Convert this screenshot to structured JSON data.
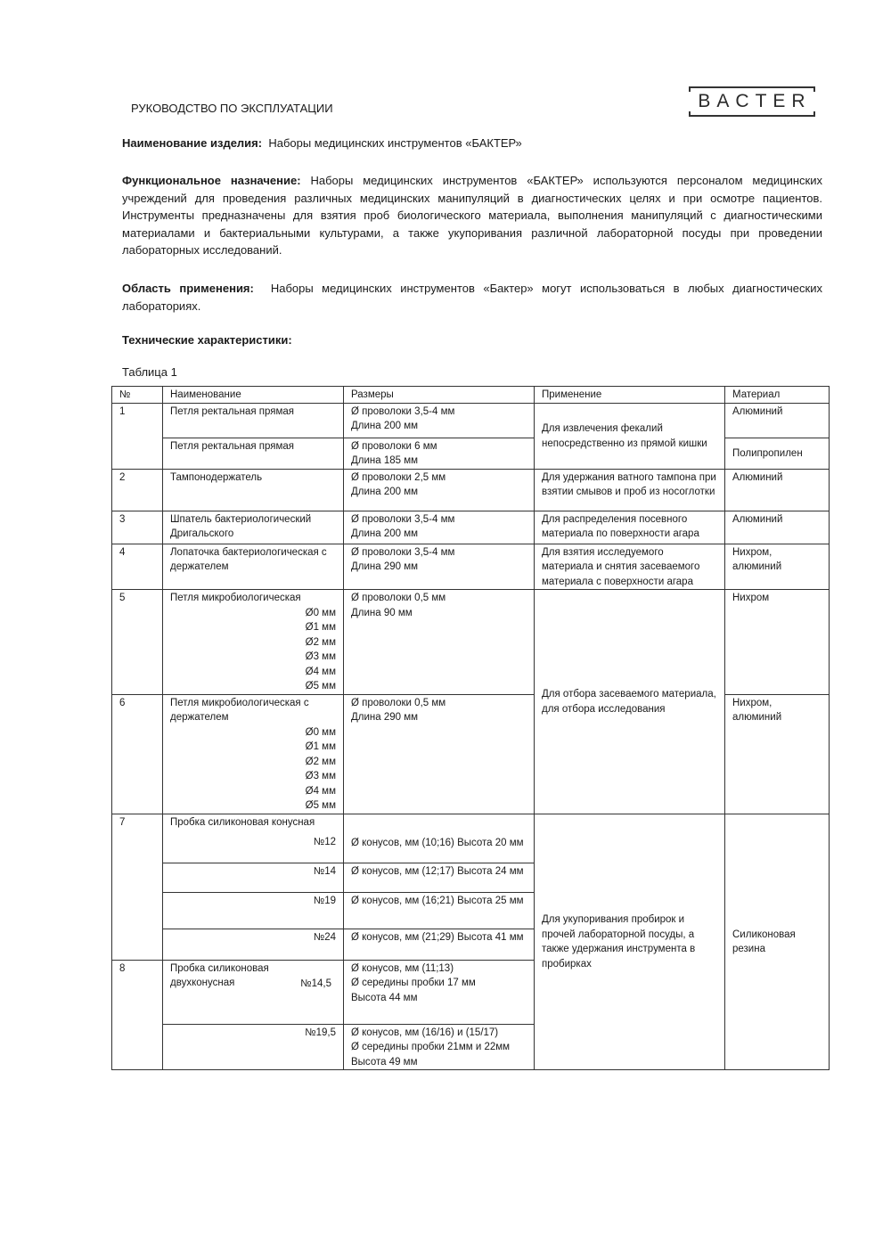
{
  "header": {
    "title": "РУКОВОДСТВО ПО ЭКСПЛУАТАЦИИ",
    "logo_text": "BACTER"
  },
  "product": {
    "label": "Наименование изделия:",
    "value": "Наборы медицинских инструментов «БАКТЕР»"
  },
  "purpose": {
    "label": "Функциональное назначение:",
    "value": "Наборы медицинских инструментов «БАКТЕР» используются  персоналом медицинских учреждений для проведения различных медицинских манипуляций в диагностических целях и при осмотре пациентов. Инструменты предназначены для взятия проб биологического материала, выполнения манипуляций с диагностическими материалами и бактериальными культурами, а также укупоривания различной лабораторной посуды при проведении лабораторных исследований."
  },
  "scope": {
    "label": "Область применения:",
    "value": "Наборы медицинских инструментов «Бактер» могут использоваться в любых диагностических лабораториях."
  },
  "specs_heading": "Технические характеристики:",
  "table": {
    "caption": "Таблица 1",
    "headers": [
      "№",
      "Наименование",
      "Размеры",
      "Применение",
      "Материал"
    ],
    "rows": [
      {
        "no": "1",
        "items": [
          {
            "name": "Петля ректальная прямая",
            "sizes": [
              "Ø проволоки 3,5-4 мм",
              "Длина 200 мм"
            ],
            "material": "Алюминий"
          },
          {
            "name": "Петля ректальная прямая",
            "sizes": [
              "Ø проволоки 6 мм",
              "Длина 185 мм"
            ],
            "material": "Полипропилен"
          }
        ],
        "application": "Для извлечения фекалий непосредственно из прямой кишки"
      },
      {
        "no": "2",
        "name": "Тампонодержатель",
        "sizes": [
          "Ø проволоки 2,5 мм",
          "Длина 200 мм"
        ],
        "application": "Для удержания ватного тампона при взятии смывов и проб из носоглотки",
        "material": "Алюминий"
      },
      {
        "no": "3",
        "name": "Шпатель бактериологический Дригальского",
        "sizes": [
          "Ø проволоки 3,5-4 мм",
          "Длина 200 мм"
        ],
        "application": "Для распределения посевного материала по поверхности агара",
        "material": "Алюминий"
      },
      {
        "no": "4",
        "name": "Лопаточка бактериологическая с держателем",
        "sizes": [
          "Ø проволоки 3,5-4 мм",
          "Длина 290 мм"
        ],
        "application": "Для взятия исследуемого материала и снятия засеваемого материала с поверхности агара",
        "material": "Нихром, алюминий"
      },
      {
        "no": "5",
        "name": "Петля микробиологическая",
        "variants": [
          "Ø0 мм",
          "Ø1 мм",
          "Ø2 мм",
          "Ø3 мм",
          "Ø4 мм",
          "Ø5 мм"
        ],
        "sizes": [
          "Ø проволоки 0,5 мм",
          "Длина 90 мм"
        ],
        "material": "Нихром"
      },
      {
        "no": "6",
        "name": "Петля микробиологическая с держателем",
        "variants": [
          "Ø0 мм",
          "Ø1 мм",
          "Ø2 мм",
          "Ø3 мм",
          "Ø4 мм",
          "Ø5 мм"
        ],
        "sizes": [
          "Ø проволоки 0,5 мм",
          "Длина 290 мм"
        ],
        "material": "Нихром, алюминий"
      },
      {
        "no": "7",
        "name": "Пробка силиконовая конусная",
        "items": [
          {
            "variant": "№12",
            "size": "Ø конусов, мм  (10;16) Высота 20 мм"
          },
          {
            "variant": "№14",
            "size": "Ø конусов, мм  (12;17) Высота 24 мм"
          },
          {
            "variant": "№19",
            "size": "Ø конусов, мм  (16;21) Высота 25 мм"
          },
          {
            "variant": "№24",
            "size": "Ø конусов, мм  (21;29) Высота 41 мм"
          }
        ]
      },
      {
        "no": "8",
        "name": "Пробка силиконовая двухконусная",
        "items": [
          {
            "variant": "№14,5",
            "sizes": [
              "Ø конусов, мм (11;13)",
              "Ø середины пробки 17 мм",
              "Высота 44 мм"
            ]
          },
          {
            "variant": "№19,5",
            "sizes": [
              "Ø конусов, мм (16/16) и (15/17)",
              "Ø середины пробки 21мм и 22мм",
              "Высота 49 мм"
            ]
          }
        ]
      }
    ],
    "application_5_6": "Для отбора засеваемого материала, для отбора исследования",
    "application_7_8": "Для укупоривания пробирок  и прочей лабораторной посуды, а также удержания инструмента в пробирках",
    "material_7_8": "Силиконовая резина"
  }
}
